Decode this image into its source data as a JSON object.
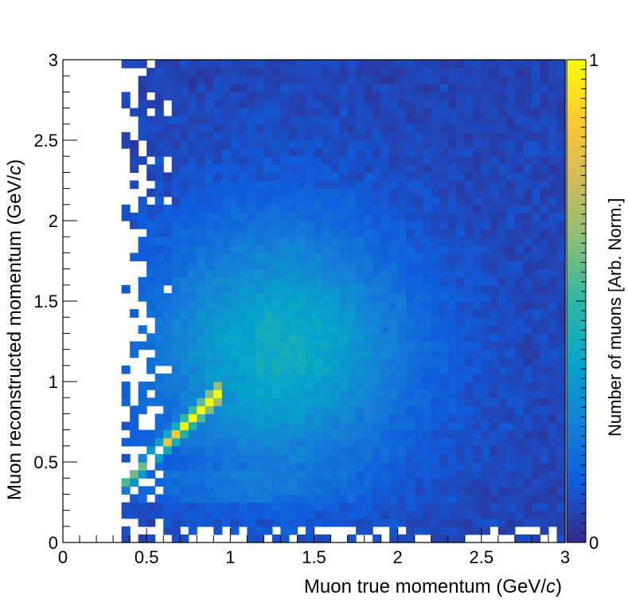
{
  "chart_data": {
    "type": "heatmap",
    "title": "",
    "xlabel": "Muon true momentum (GeV/",
    "xlabel_unit_italic": "c",
    "xlabel_close": ")",
    "ylabel": "Muon reconstructed momentum (GeV/",
    "ylabel_unit_italic": "c",
    "ylabel_close": ")",
    "zlabel": "Number of muons [Arb. Norm.]",
    "xlim": [
      0,
      3
    ],
    "ylim": [
      0,
      3
    ],
    "zlim": [
      0,
      1
    ],
    "bins": 60,
    "x_ticks": [
      "0",
      "0.5",
      "1",
      "1.5",
      "2",
      "2.5",
      "3"
    ],
    "y_ticks": [
      "0",
      "0.5",
      "1",
      "1.5",
      "2",
      "2.5",
      "3"
    ],
    "z_ticks": [
      "0",
      "1"
    ],
    "colormap": [
      "#352a87",
      "#0f5cdd",
      "#1481d6",
      "#06a4ca",
      "#2eb7a4",
      "#87bf77",
      "#d1bb59",
      "#fec832",
      "#f9fb0e"
    ],
    "features": {
      "peak": {
        "x": 0.9,
        "y": 0.88,
        "z": 1.0
      },
      "diagonal_ridge": {
        "from": [
          0.35,
          0.38
        ],
        "to": [
          0.93,
          0.92
        ],
        "z_from": 0.35,
        "z_to": 0.95
      },
      "broad_blob": {
        "center": [
          1.3,
          1.2
        ],
        "z": 0.35
      },
      "empty_region": "p_true < 0.35 GeV/c (sparse border 0.35–0.7)"
    }
  }
}
